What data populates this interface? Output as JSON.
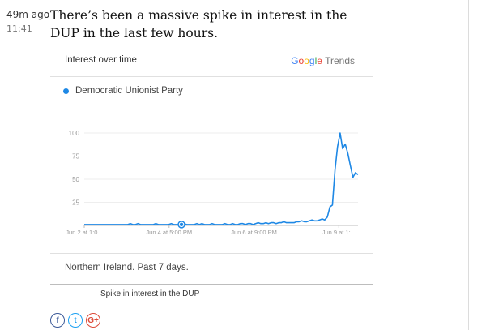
{
  "entry": {
    "relative_time": "49m ago",
    "clock_time": "11:41",
    "headline": "There’s been a massive spike in interest in the DUP in the last few hours."
  },
  "card": {
    "title": "Interest over time",
    "brand": {
      "letters": [
        "G",
        "o",
        "o",
        "g",
        "l",
        "e"
      ],
      "product": "Trends"
    },
    "legend_label": "Democratic Unionist Party",
    "footer": "Northern Ireland. Past 7 days.",
    "series_color": "#1e88e5"
  },
  "caption": "Spike in interest in the DUP",
  "share": {
    "facebook": "f",
    "twitter": "t",
    "google_plus": "G+"
  },
  "chart_data": {
    "type": "line",
    "series": [
      {
        "name": "Democratic Unionist Party",
        "values": [
          1,
          1,
          1,
          1,
          1,
          1,
          1,
          1,
          1,
          1,
          1,
          1,
          1,
          1,
          1,
          1,
          1,
          1,
          2,
          1,
          1,
          2,
          1,
          1,
          1,
          1,
          1,
          1,
          2,
          1,
          1,
          1,
          1,
          1,
          2,
          1,
          1,
          1,
          1,
          2,
          1,
          1,
          1,
          1,
          2,
          1,
          2,
          1,
          1,
          1,
          2,
          1,
          1,
          1,
          1,
          2,
          1,
          1,
          2,
          1,
          1,
          2,
          2,
          1,
          2,
          2,
          1,
          2,
          3,
          2,
          2,
          3,
          2,
          3,
          3,
          2,
          3,
          3,
          4,
          3,
          3,
          3,
          3,
          4,
          4,
          5,
          4,
          4,
          5,
          6,
          5,
          5,
          6,
          7,
          6,
          9,
          20,
          22,
          60,
          85,
          100,
          83,
          88,
          78,
          65,
          52,
          57,
          55
        ]
      }
    ],
    "x_tick_labels": [
      "Jun 2 at 1:0...",
      "Jun 4 at 5:00 PM",
      "Jun 6 at 9:00 PM",
      "Jun 9 at 1:..."
    ],
    "x_tick_positions": [
      0,
      0.31,
      0.62,
      0.93
    ],
    "y_ticks": [
      25,
      50,
      75,
      100
    ],
    "ylim": [
      0,
      100
    ],
    "highlight_index": 38,
    "grid": true
  }
}
